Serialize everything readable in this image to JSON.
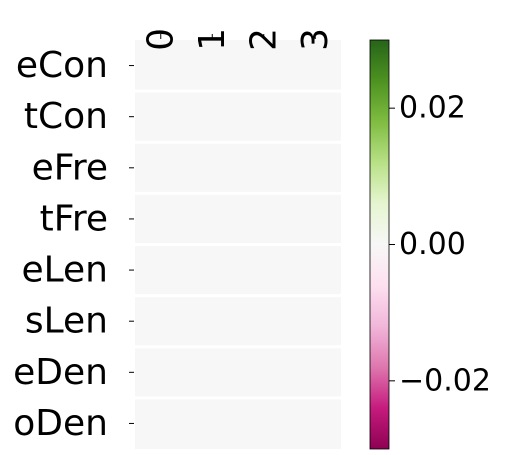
{
  "chart_data": {
    "type": "heatmap",
    "title": "",
    "xlabel": "",
    "ylabel": "",
    "x_categories": [
      "0",
      "1",
      "2",
      "3"
    ],
    "y_categories": [
      "eCon",
      "tCon",
      "eFre",
      "tFre",
      "eLen",
      "sLen",
      "eDen",
      "oDen"
    ],
    "values": [
      [
        0,
        0,
        0,
        0
      ],
      [
        0,
        0,
        0,
        0
      ],
      [
        0,
        0,
        0,
        0
      ],
      [
        0,
        0,
        0,
        0
      ],
      [
        0,
        0,
        0,
        0
      ],
      [
        0,
        0,
        0,
        0
      ],
      [
        0,
        0,
        0,
        0
      ],
      [
        0,
        0,
        0,
        0
      ]
    ],
    "colormap": "PiYG",
    "colorbar": {
      "vmin": -0.03,
      "vmax": 0.03,
      "ticks": [
        -0.02,
        0.0,
        0.02
      ],
      "tick_labels": [
        "−0.02",
        "0.00",
        "0.02"
      ]
    },
    "cell_gap_color": "#ffffff",
    "grid": false,
    "legend": "colorbar-right"
  }
}
